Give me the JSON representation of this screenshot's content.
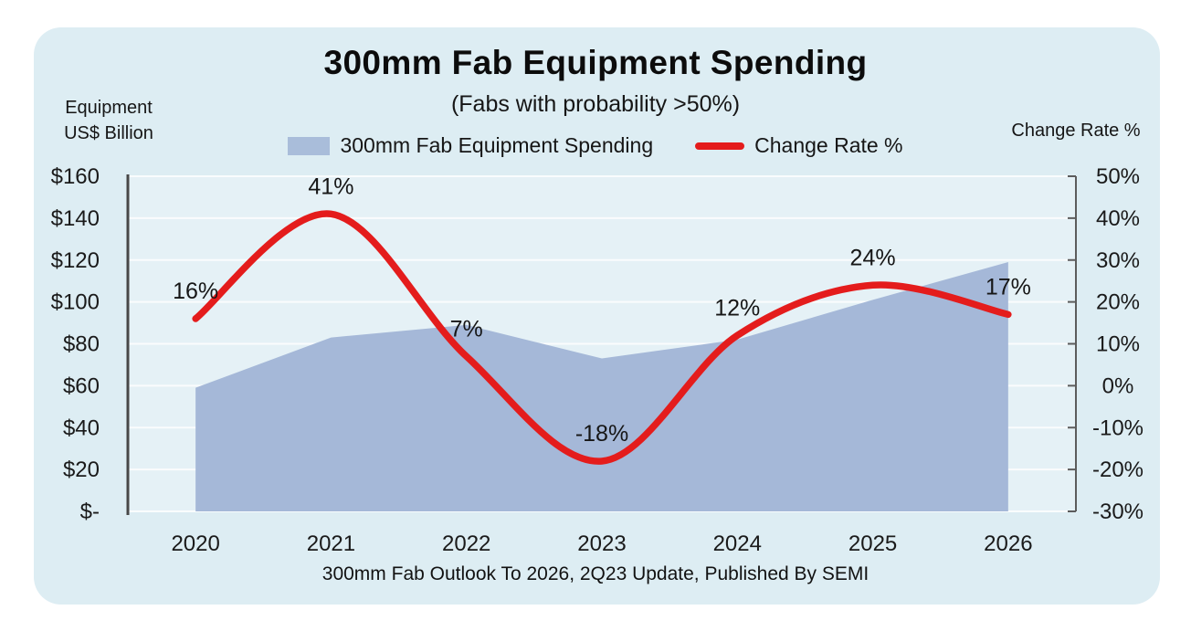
{
  "card": {
    "background": "#ddedf3"
  },
  "chart": {
    "title": "300mm Fab Equipment Spending",
    "subtitle": "(Fabs with probability >50%)",
    "left_axis_title_line1": "Equipment",
    "left_axis_title_line2": "US$ Billion",
    "right_axis_title": "Change Rate %",
    "caption": "300mm Fab Outlook To 2026, 2Q23 Update, Published By SEMI",
    "legend": [
      {
        "label": "300mm Fab Equipment Spending",
        "color": "#a9bdda"
      },
      {
        "label": "Change Rate %",
        "color": "#e41c1c"
      }
    ]
  },
  "chart_data": {
    "type": "combo",
    "categories": [
      "2020",
      "2021",
      "2022",
      "2023",
      "2024",
      "2025",
      "2026"
    ],
    "series": [
      {
        "name": "300mm Fab Equipment Spending",
        "type": "area",
        "axis": "left",
        "color": "#a5b8d8",
        "values": [
          59,
          83,
          89,
          73,
          82,
          101,
          119
        ]
      },
      {
        "name": "Change Rate %",
        "type": "line",
        "axis": "right",
        "smooth": true,
        "color": "#e41c1c",
        "values": [
          16,
          41,
          7,
          -18,
          12,
          24,
          17
        ],
        "point_labels": [
          "16%",
          "41%",
          "7%",
          "-18%",
          "12%",
          "24%",
          "17%"
        ]
      }
    ],
    "left_axis": {
      "title": "Equipment US$ Billion",
      "min": 0,
      "max": 160,
      "step": 20,
      "tick_labels": [
        "$160",
        "$140",
        "$120",
        "$100",
        "$80",
        "$60",
        "$40",
        "$20",
        "$-"
      ]
    },
    "right_axis": {
      "title": "Change Rate %",
      "min": -30,
      "max": 50,
      "step": 10,
      "tick_labels": [
        "50%",
        "40%",
        "30%",
        "20%",
        "10%",
        "0%",
        "-10%",
        "-20%",
        "-30%"
      ]
    },
    "grid": true,
    "legend_position": "top",
    "plot_background": "#e5f1f6"
  }
}
